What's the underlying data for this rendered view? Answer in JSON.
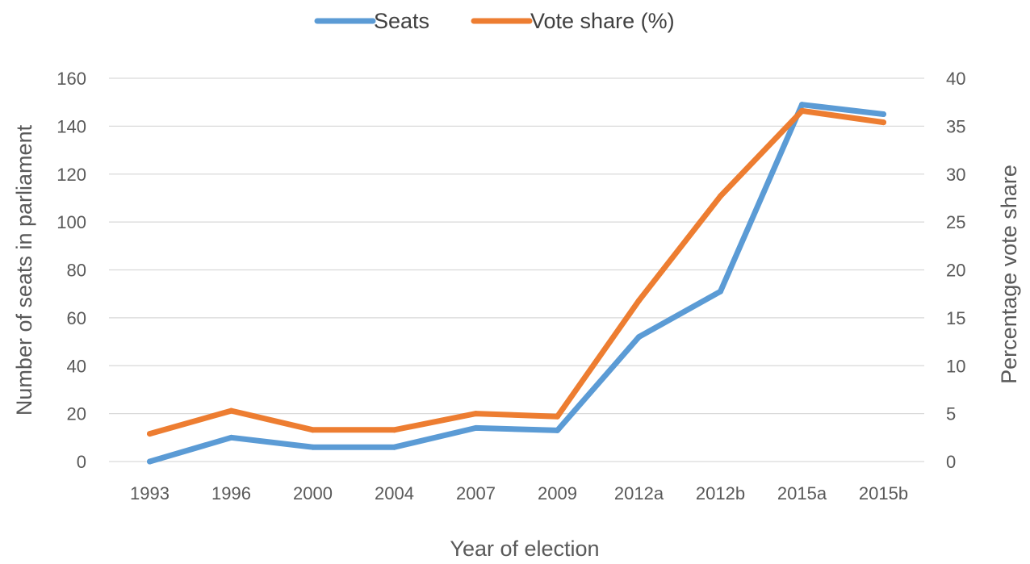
{
  "chart_data": {
    "type": "line",
    "categories": [
      "1993",
      "1996",
      "2000",
      "2004",
      "2007",
      "2009",
      "2012a",
      "2012b",
      "2015a",
      "2015b"
    ],
    "series": [
      {
        "name": "Seats",
        "axis": "left",
        "color": "#5b9bd5",
        "values": [
          0,
          10,
          6,
          6,
          14,
          13,
          52,
          71,
          149,
          145
        ]
      },
      {
        "name": "Vote share (%)",
        "axis": "right",
        "color": "#ed7d31",
        "values": [
          2.9,
          5.3,
          3.3,
          3.3,
          5.0,
          4.7,
          16.8,
          27.7,
          36.6,
          35.4
        ]
      }
    ],
    "xlabel": "Year of election",
    "ylabel_left": "Number of seats in parliament",
    "ylabel_right": "Percentage vote share",
    "ylim_left": [
      0,
      160
    ],
    "yticks_left": [
      "0",
      "20",
      "40",
      "60",
      "80",
      "100",
      "120",
      "140",
      "160"
    ],
    "ylim_right": [
      0,
      40
    ],
    "yticks_right": [
      "0",
      "5",
      "10",
      "15",
      "20",
      "25",
      "30",
      "35",
      "40"
    ],
    "grid": true,
    "legend_position": "top-center"
  }
}
